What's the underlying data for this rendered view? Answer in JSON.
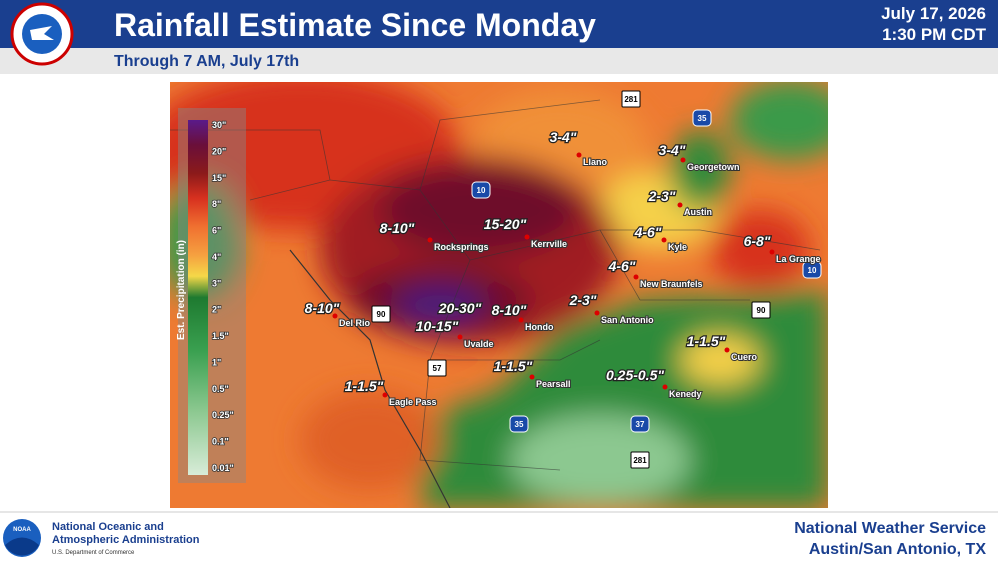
{
  "header": {
    "title": "Rainfall Estimate Since Monday",
    "date": "July 17, 2026",
    "time": "1:30 PM CDT",
    "subtitle": "Through 7 AM, July 17th"
  },
  "legend": {
    "title": "Est. Precipitation (in)",
    "labels": [
      "30\"",
      "20\"",
      "15\"",
      "8\"",
      "6\"",
      "4\"",
      "3\"",
      "2\"",
      "1.5\"",
      "1\"",
      "0.5\"",
      "0.25\"",
      "0.1\"",
      "0.01\""
    ]
  },
  "map": {
    "amounts": [
      "3-4\"",
      "3-4\"",
      "2-3\"",
      "4-6\"",
      "6-8\"",
      "15-20\"",
      "8-10\"",
      "8-10\"",
      "20-30\"",
      "8-10\"",
      "10-15\"",
      "2-3\"",
      "4-6\"",
      "1-1.5\"",
      "0.25-0.5\"",
      "1-1.5\"",
      "1-1.5\""
    ],
    "cities": [
      "Llano",
      "Georgetown",
      "Austin",
      "Kyle",
      "Kerrville",
      "Rocksprings",
      "Del Rio",
      "Uvalde",
      "Hondo",
      "San Antonio",
      "New Braunfels",
      "La Grange",
      "Cuero",
      "Kenedy",
      "Pearsall",
      "Eagle Pass"
    ],
    "highways": [
      "281",
      "35",
      "10",
      "10",
      "90",
      "90",
      "57",
      "35",
      "37",
      "281"
    ]
  },
  "footer": {
    "noaa_logo": "NOAA",
    "agency_line1": "National Oceanic and",
    "agency_line2": "Atmospheric Administration",
    "department": "U.S. Department of Commerce",
    "office_line1": "National Weather Service",
    "office_line2": "Austin/San Antonio, TX"
  }
}
